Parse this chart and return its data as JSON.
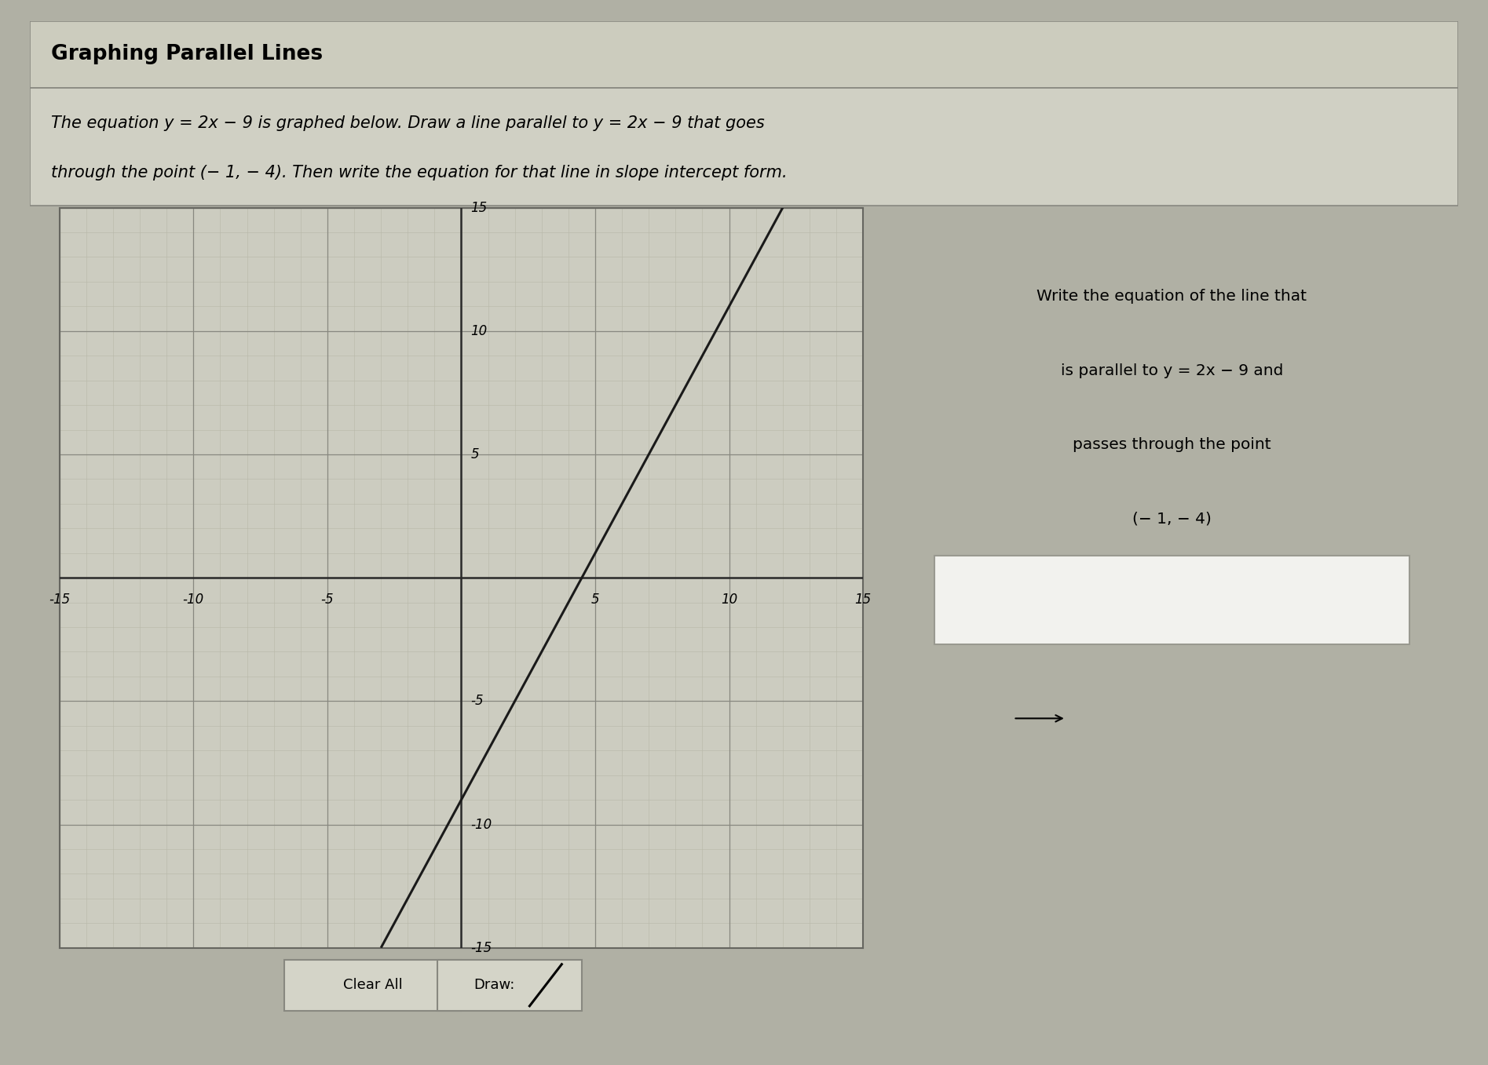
{
  "title": "Graphing Parallel Lines",
  "description_line1": "The equation y = 2x − 9 is graphed below. Draw a line parallel to y = 2x − 9 that goes",
  "description_line2": "through the point (− 1, − 4). Then write the equation for that line in slope intercept form.",
  "equation_slope": 2,
  "equation_intercept": -9,
  "xlim": [
    -15,
    15
  ],
  "ylim": [
    -15,
    15
  ],
  "xticks": [
    -15,
    -10,
    -5,
    5,
    10,
    15
  ],
  "yticks": [
    -15,
    -10,
    -5,
    5,
    10,
    15
  ],
  "line_color": "#1a1a1a",
  "grid_minor_color": "#b8b8a8",
  "grid_major_color": "#888880",
  "graph_bg": "#ccccc0",
  "outer_bg": "#b0b0a4",
  "panel_bg": "#c8c8bc",
  "title_bg": "#ccccbe",
  "desc_bg": "#d0d0c4",
  "right_panel_bg": "#d0d0c4",
  "right_panel_title_line1": "Write the equation of the line that",
  "right_panel_title_line2": "is parallel to y = 2x − 9 and",
  "right_panel_title_line3": "passes through the point",
  "right_panel_title_line4": "(− 1, − 4)"
}
